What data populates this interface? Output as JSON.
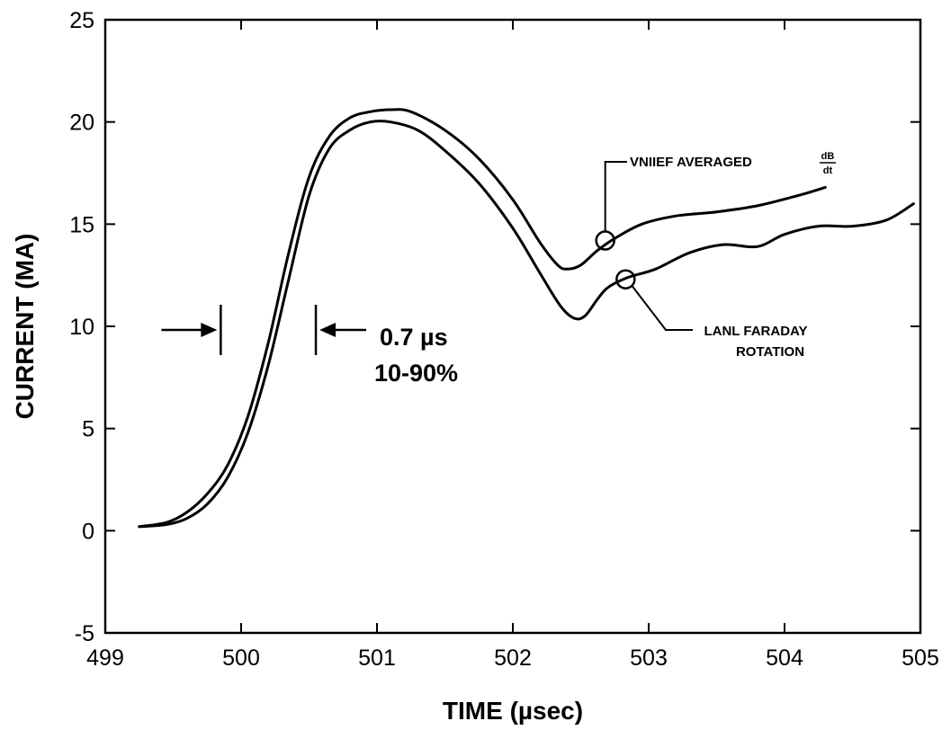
{
  "chart_data": {
    "type": "line",
    "title": "",
    "xlabel": "TIME (µsec)",
    "ylabel": "CURRENT (MA)",
    "xlim": [
      499,
      505
    ],
    "ylim": [
      -5,
      25
    ],
    "x_ticks": [
      "499",
      "500",
      "501",
      "502",
      "503",
      "504",
      "505"
    ],
    "y_ticks": [
      "-5",
      "0",
      "5",
      "10",
      "15",
      "20",
      "25"
    ],
    "grid": false,
    "series": [
      {
        "name": "VNIIEF AVERAGED dB/dt",
        "x": [
          499.25,
          499.45,
          499.6,
          499.75,
          499.9,
          500.05,
          500.2,
          500.35,
          500.5,
          500.65,
          500.8,
          500.95,
          501.1,
          501.25,
          501.5,
          501.75,
          502.0,
          502.2,
          502.33,
          502.4,
          502.5,
          502.62,
          502.75,
          502.95,
          503.2,
          503.5,
          503.8,
          504.1,
          504.3
        ],
        "y": [
          0.2,
          0.4,
          0.9,
          1.8,
          3.2,
          5.6,
          9.2,
          13.6,
          17.3,
          19.3,
          20.2,
          20.5,
          20.6,
          20.5,
          19.6,
          18.2,
          16.2,
          14.1,
          13.0,
          12.8,
          13.0,
          13.7,
          14.3,
          15.0,
          15.4,
          15.6,
          15.9,
          16.4,
          16.8
        ]
      },
      {
        "name": "LANL FARADAY ROTATION",
        "x": [
          499.25,
          499.45,
          499.6,
          499.75,
          499.9,
          500.05,
          500.2,
          500.35,
          500.5,
          500.65,
          500.8,
          500.95,
          501.1,
          501.3,
          501.5,
          501.75,
          502.0,
          502.2,
          502.35,
          502.45,
          502.53,
          502.62,
          502.7,
          502.85,
          503.05,
          503.3,
          503.55,
          503.8,
          504.0,
          504.25,
          504.5,
          504.75,
          504.95
        ],
        "y": [
          0.2,
          0.3,
          0.6,
          1.3,
          2.6,
          4.8,
          8.1,
          12.3,
          16.4,
          18.7,
          19.6,
          20.0,
          20.0,
          19.6,
          18.6,
          17.0,
          14.8,
          12.6,
          11.0,
          10.4,
          10.5,
          11.3,
          11.9,
          12.4,
          12.8,
          13.6,
          14.0,
          13.9,
          14.5,
          14.9,
          14.9,
          15.2,
          16.0
        ]
      }
    ],
    "annotations": {
      "rise_time": "0.7 µs",
      "rise_range": "10-90%",
      "vniief_label": "VNIIEF AVERAGED",
      "db": "dB",
      "dt": "dt",
      "lanl_line1": "LANL FARADAY",
      "lanl_line2": "ROTATION",
      "rise_start_x": 499.85,
      "rise_end_x": 500.55,
      "rise_level_y": 10,
      "vniief_marker": [
        502.68,
        14.2
      ],
      "lanl_marker": [
        502.83,
        12.3
      ]
    }
  }
}
